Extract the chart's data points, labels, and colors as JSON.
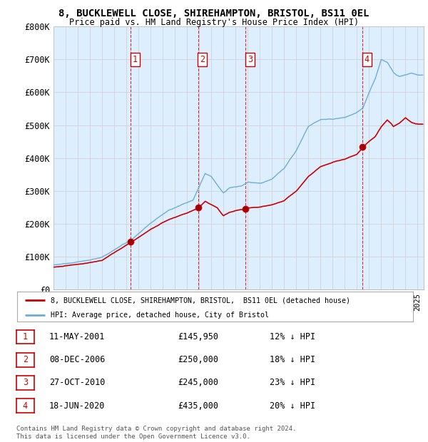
{
  "title": "8, BUCKLEWELL CLOSE, SHIREHAMPTON, BRISTOL, BS11 0EL",
  "subtitle": "Price paid vs. HM Land Registry's House Price Index (HPI)",
  "ylim": [
    0,
    800000
  ],
  "yticks": [
    0,
    100000,
    200000,
    300000,
    400000,
    500000,
    600000,
    700000,
    800000
  ],
  "ytick_labels": [
    "£0",
    "£100K",
    "£200K",
    "£300K",
    "£400K",
    "£500K",
    "£600K",
    "£700K",
    "£800K"
  ],
  "hpi_color": "#6baed6",
  "hpi_fill_color": "#ddeeff",
  "price_color": "#cc0000",
  "purchases": [
    {
      "num": "1",
      "year": 2001.36,
      "price": 145950
    },
    {
      "num": "2",
      "year": 2006.92,
      "price": 250000
    },
    {
      "num": "3",
      "year": 2010.82,
      "price": 245000
    },
    {
      "num": "4",
      "year": 2020.46,
      "price": 435000
    }
  ],
  "legend_label_price": "8, BUCKLEWELL CLOSE, SHIREHAMPTON, BRISTOL,  BS11 0EL (detached house)",
  "legend_label_hpi": "HPI: Average price, detached house, City of Bristol",
  "table": [
    {
      "num": "1",
      "date": "11-MAY-2001",
      "price": "£145,950",
      "pct": "12% ↓ HPI"
    },
    {
      "num": "2",
      "date": "08-DEC-2006",
      "price": "£250,000",
      "pct": "18% ↓ HPI"
    },
    {
      "num": "3",
      "date": "27-OCT-2010",
      "price": "£245,000",
      "pct": "23% ↓ HPI"
    },
    {
      "num": "4",
      "date": "18-JUN-2020",
      "price": "£435,000",
      "pct": "20% ↓ HPI"
    }
  ],
  "footer": "Contains HM Land Registry data © Crown copyright and database right 2024.\nThis data is licensed under the Open Government Licence v3.0.",
  "background_color": "#ffffff",
  "grid_color": "#cccccc"
}
